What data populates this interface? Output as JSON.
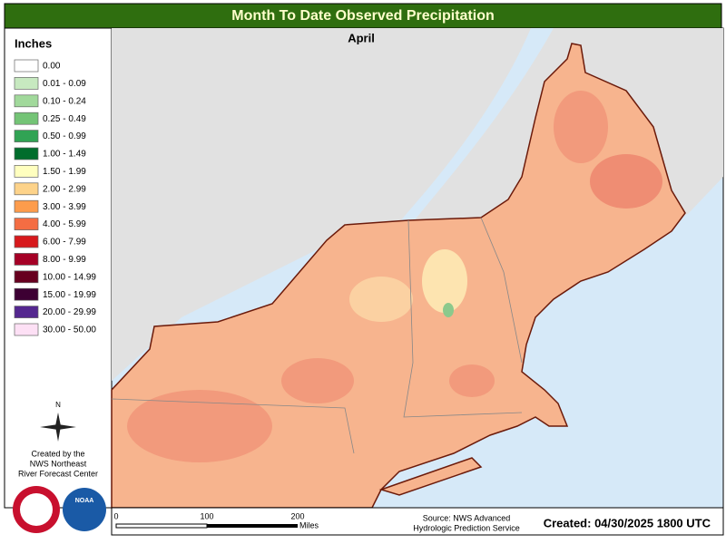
{
  "header": {
    "title": "Month To Date Observed Precipitation",
    "subtitle": "April"
  },
  "legend": {
    "title": "Inches",
    "items": [
      {
        "label": "0.00",
        "color": "#ffffff"
      },
      {
        "label": "0.01 - 0.09",
        "color": "#c7e9c0"
      },
      {
        "label": "0.10 - 0.24",
        "color": "#a1d99b"
      },
      {
        "label": "0.25 - 0.49",
        "color": "#74c476"
      },
      {
        "label": "0.50 - 0.99",
        "color": "#31a354"
      },
      {
        "label": "1.00 - 1.49",
        "color": "#006d2c"
      },
      {
        "label": "1.50 - 1.99",
        "color": "#ffffbf"
      },
      {
        "label": "2.00 - 2.99",
        "color": "#fdd38a"
      },
      {
        "label": "3.00 - 3.99",
        "color": "#fd9c4c"
      },
      {
        "label": "4.00 - 5.99",
        "color": "#f46d43"
      },
      {
        "label": "6.00 - 7.99",
        "color": "#d7191c"
      },
      {
        "label": "8.00 - 9.99",
        "color": "#a50026"
      },
      {
        "label": "10.00 - 14.99",
        "color": "#67001f"
      },
      {
        "label": "15.00 - 19.99",
        "color": "#3d0033"
      },
      {
        "label": "20.00 - 29.99",
        "color": "#54278f"
      },
      {
        "label": "30.00 - 50.00",
        "color": "#fde0f5"
      }
    ]
  },
  "compass": "N",
  "credit": [
    "Created by the",
    "NWS Northeast",
    "River Forecast Center"
  ],
  "logos": [
    "NATIONAL WEATHER SERVICE",
    "NOAA"
  ],
  "scale": {
    "labels": [
      "0",
      "100",
      "200"
    ],
    "unit": "Miles"
  },
  "source": [
    "Source: NWS Advanced",
    "Hydrologic Prediction Service"
  ],
  "created": "Created: 04/30/2025 1800 UTC"
}
